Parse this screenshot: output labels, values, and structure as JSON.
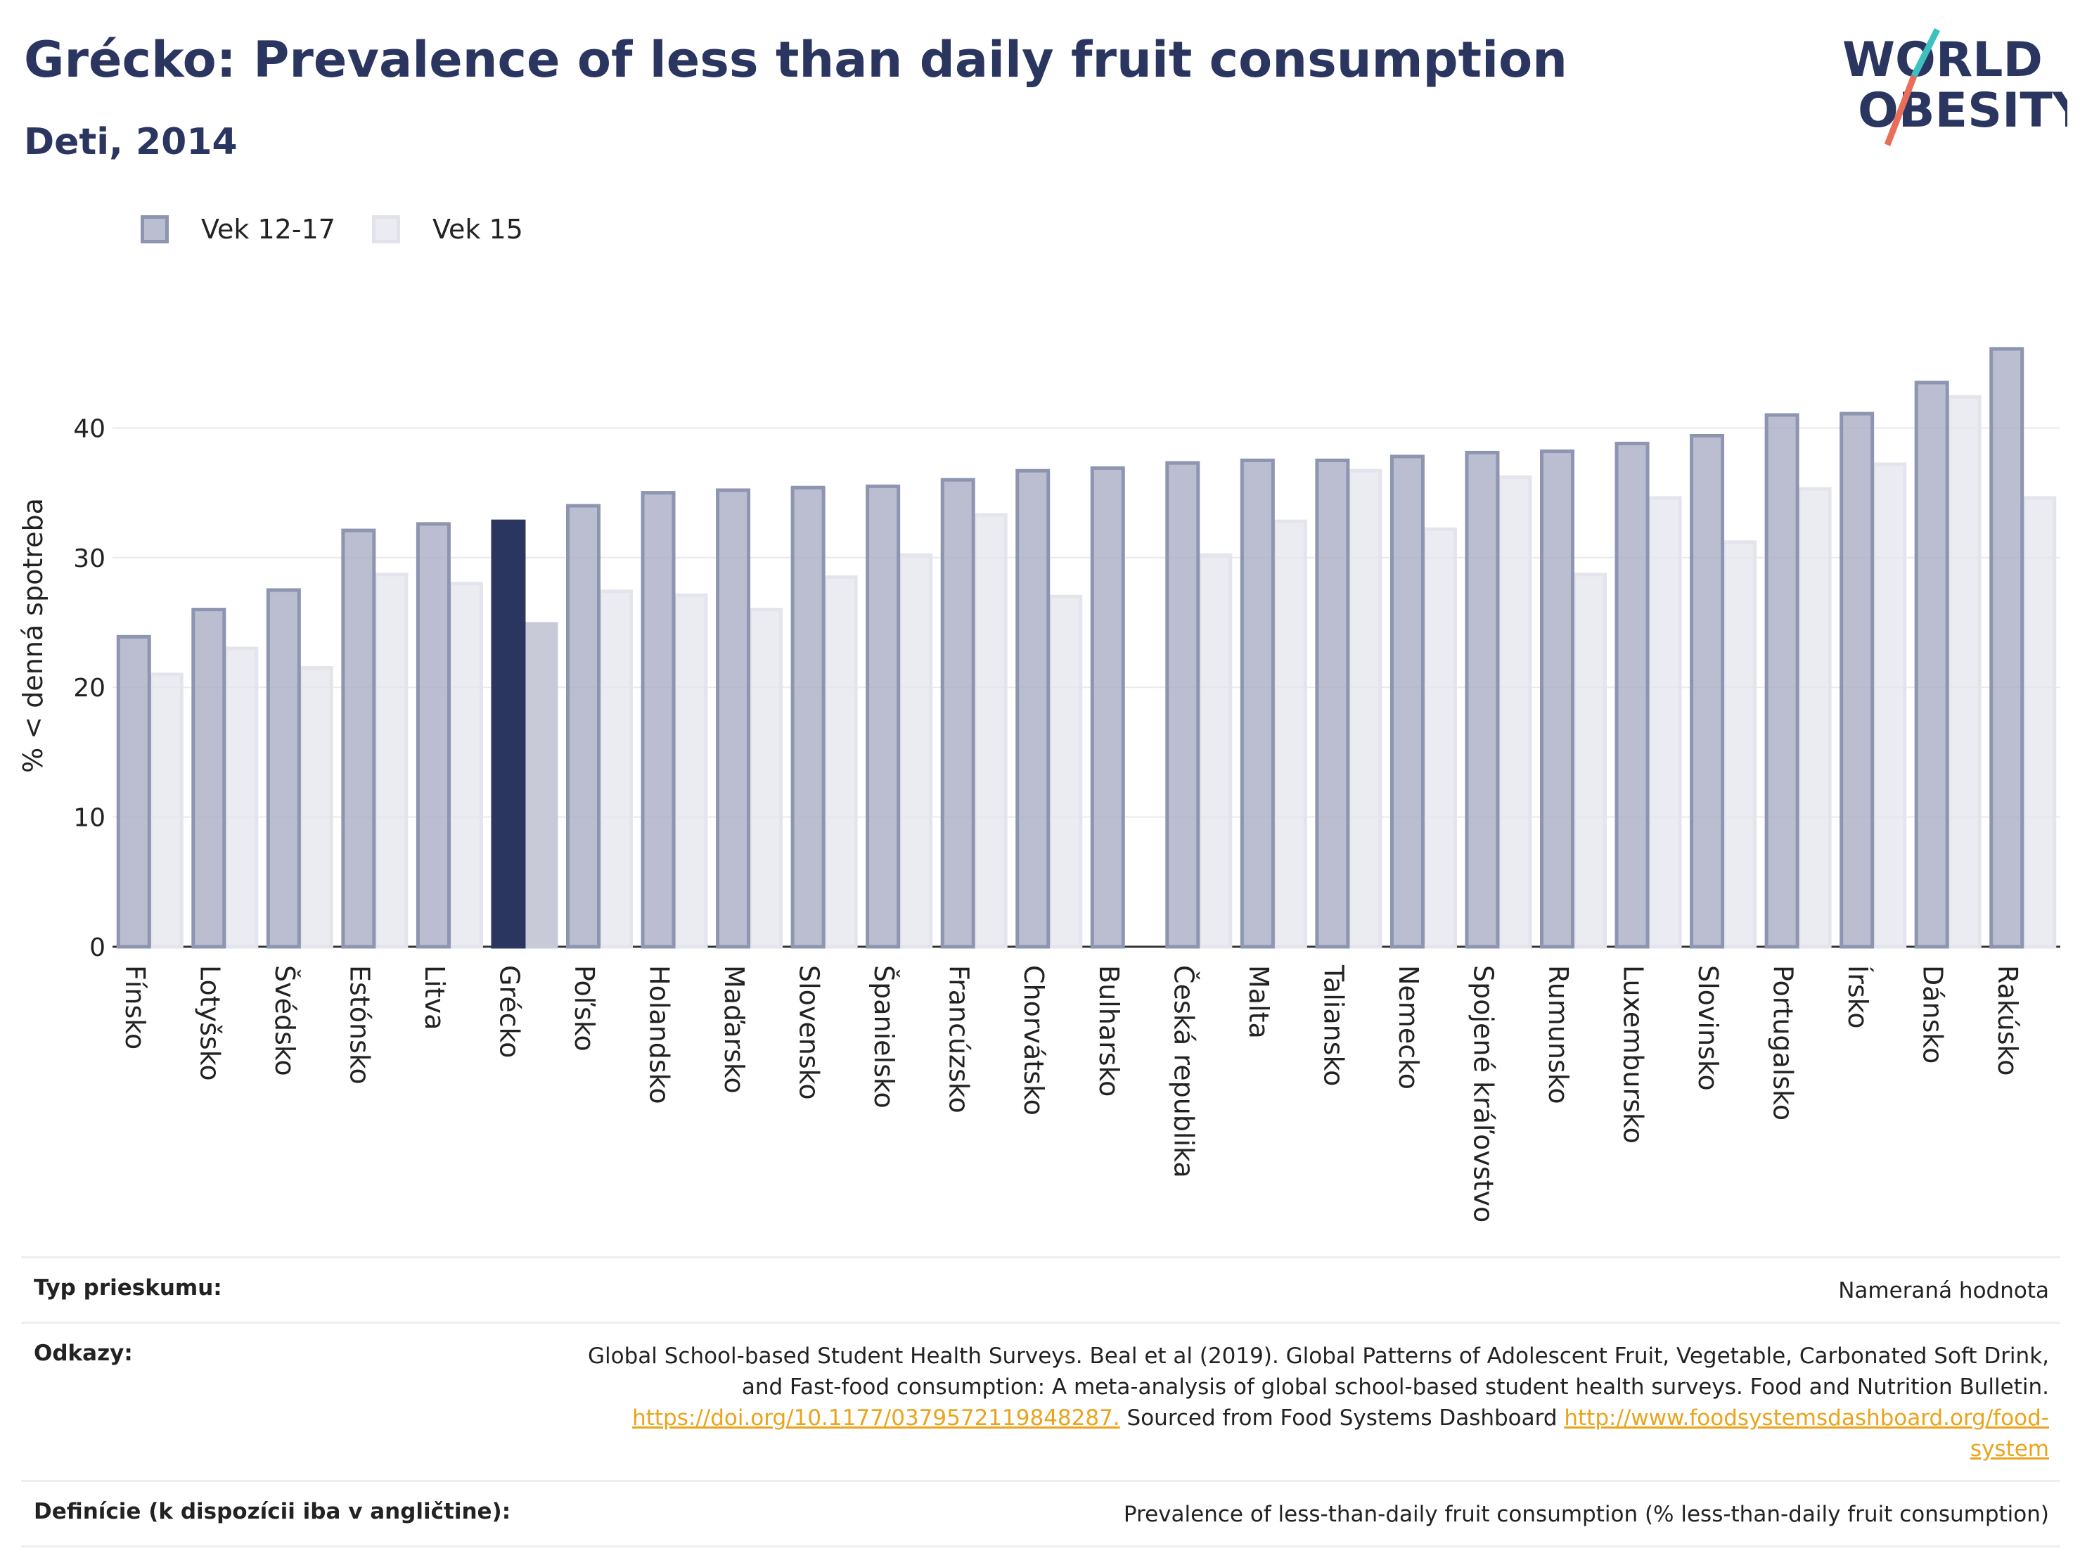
{
  "header": {
    "title": "Grécko: Prevalence of less than daily fruit consumption",
    "subtitle": "Deti, 2014"
  },
  "logo": {
    "line1": "WORLD",
    "line2": "OBESITY"
  },
  "colors": {
    "title": "#2a3560",
    "series1_fill": "#aaaec4",
    "series1_stroke": "#8e95b0",
    "series2_fill": "#e4e5ec",
    "highlight_series1": "#2a3560",
    "highlight_series2": "#c8cad7",
    "link": "#e9a41c"
  },
  "chart_data": {
    "type": "bar",
    "ylabel": "% < denná spotreba",
    "ylim": [
      0,
      48
    ],
    "yticks": [
      0,
      10,
      20,
      30,
      40
    ],
    "grid": true,
    "legend_position": "top-left",
    "highlight": "Grécko",
    "categories": [
      "Fínsko",
      "Lotyšsko",
      "Švédsko",
      "Estónsko",
      "Litva",
      "Grécko",
      "Poľsko",
      "Holandsko",
      "Maďarsko",
      "Slovensko",
      "Španielsko",
      "Francúzsko",
      "Chorvátsko",
      "Bulharsko",
      "Česká republika",
      "Malta",
      "Taliansko",
      "Nemecko",
      "Spojené kráľovstvo",
      "Rumunsko",
      "Luxembursko",
      "Slovinsko",
      "Portugalsko",
      "Írsko",
      "Dánsko",
      "Rakúsko"
    ],
    "series": [
      {
        "name": "Vek 12-17",
        "values": [
          23.9,
          26.0,
          27.5,
          32.1,
          32.6,
          32.8,
          34.0,
          35.0,
          35.2,
          35.4,
          35.5,
          36.0,
          36.7,
          36.9,
          37.3,
          37.5,
          37.5,
          37.8,
          38.1,
          38.2,
          38.8,
          39.4,
          41.0,
          41.1,
          43.5,
          46.1
        ]
      },
      {
        "name": "Vek 15",
        "values": [
          21.0,
          23.0,
          21.5,
          28.7,
          28.0,
          24.9,
          27.4,
          27.1,
          26.0,
          28.5,
          30.2,
          33.3,
          27.0,
          null,
          30.2,
          32.8,
          36.7,
          32.2,
          36.2,
          28.7,
          34.6,
          31.2,
          35.3,
          37.2,
          42.4,
          34.6
        ]
      }
    ]
  },
  "info": {
    "survey_label": "Typ prieskumu:",
    "survey_value": "Nameraná hodnota",
    "refs_label": "Odkazy:",
    "refs_line1": "Global School-based Student Health Surveys. Beal et al (2019). Global Patterns of Adolescent Fruit, Vegetable, Carbonated Soft Drink,",
    "refs_line2": "and Fast-food consumption: A meta-analysis of global school-based student health surveys. Food and Nutrition Bulletin.",
    "refs_link1": "https://doi.org/10.1177/0379572119848287.",
    "refs_mid": " Sourced from Food Systems Dashboard ",
    "refs_link2a": "http://www.foodsystemsdashboard.org/food-",
    "refs_link2b": "system",
    "def_label": "Definície (k dispozícii iba v angličtine):",
    "def_value": "Prevalence of less-than-daily fruit consumption (% less-than-daily fruit consumption)"
  }
}
